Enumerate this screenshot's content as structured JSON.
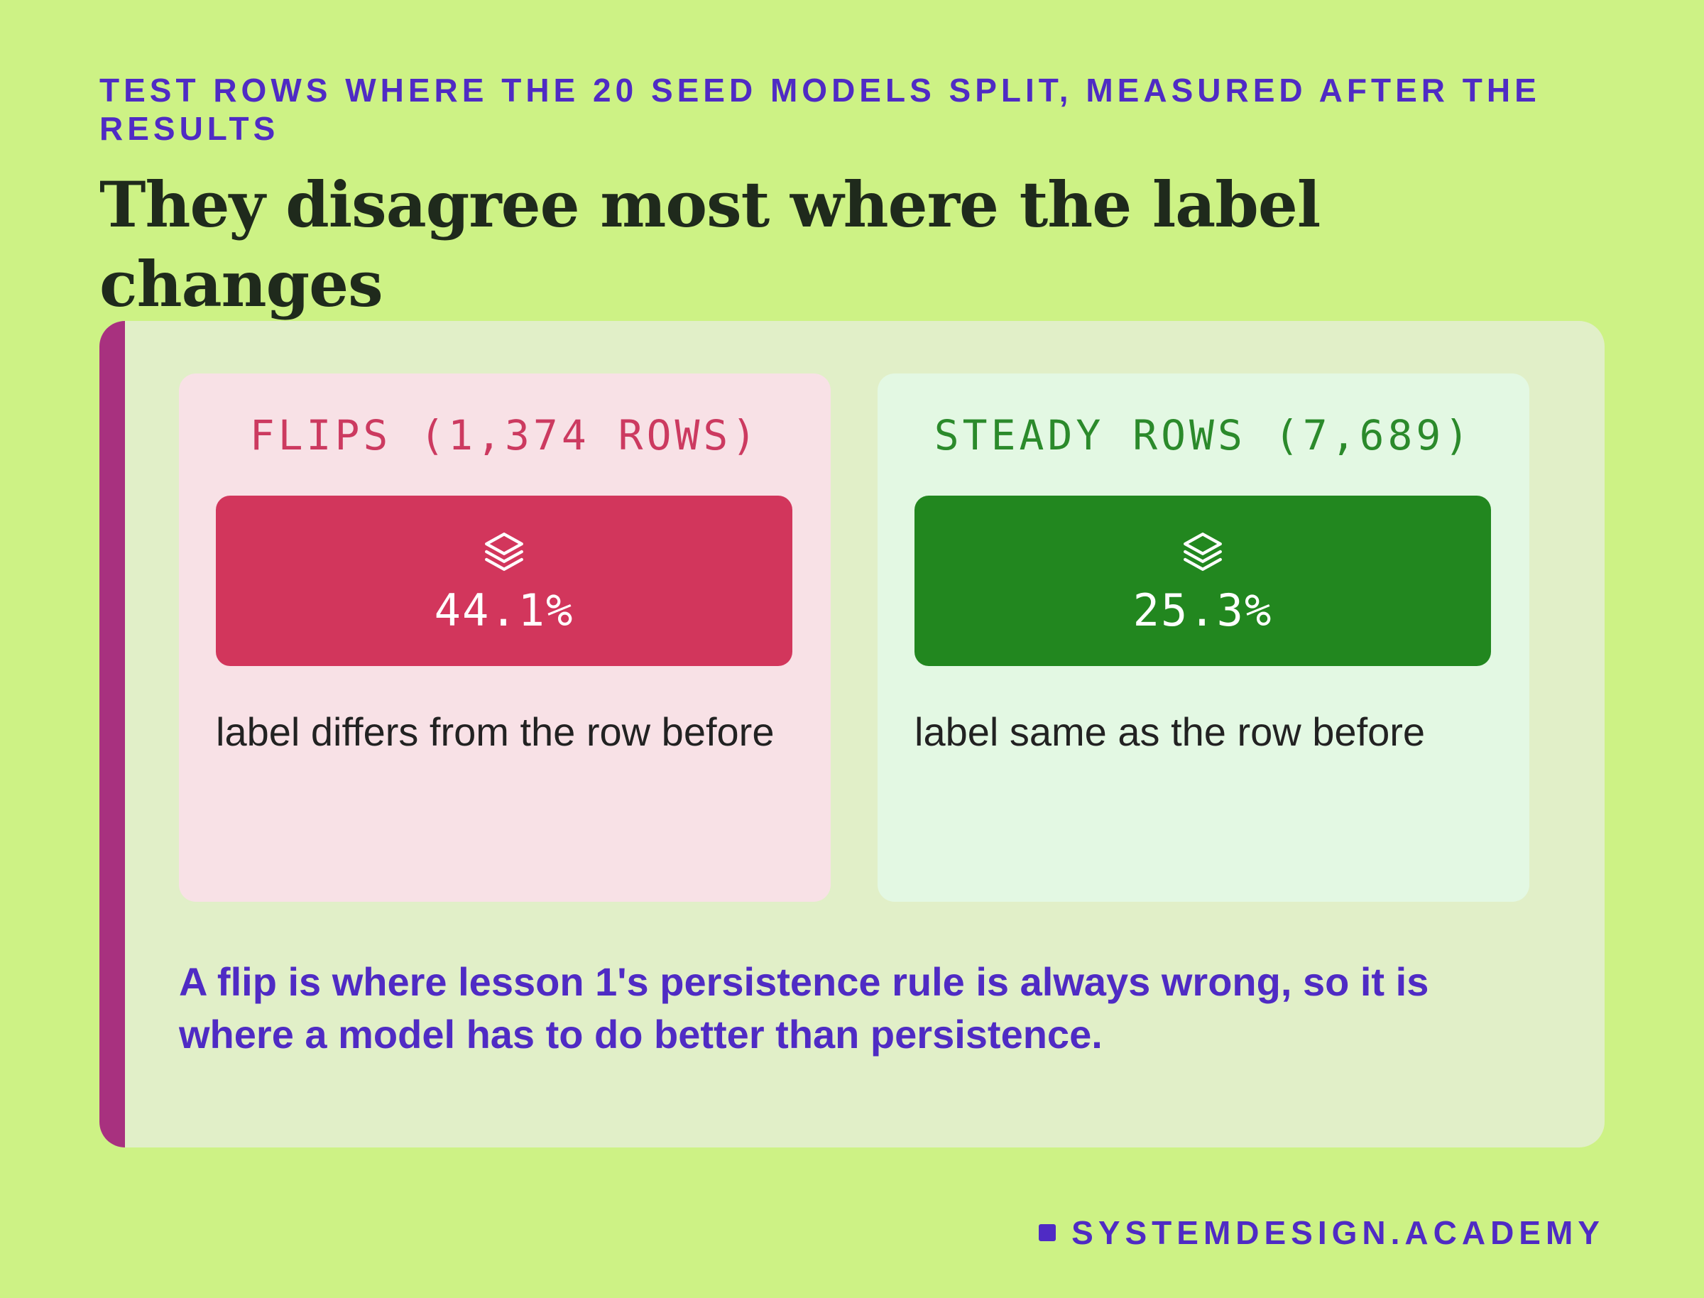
{
  "header": {
    "eyebrow": "TEST ROWS WHERE THE 20 SEED MODELS SPLIT, MEASURED AFTER THE RESULTS",
    "headline": "They disagree most where the label changes"
  },
  "cards": [
    {
      "title": "FLIPS (1,374 ROWS)",
      "icon": "layers-icon",
      "value": "44.1%",
      "description": "label differs from the row before",
      "color": "#d2365c"
    },
    {
      "title": "STEADY ROWS (7,689)",
      "icon": "layers-icon",
      "value": "25.3%",
      "description": "label same as the row before",
      "color": "#22871f"
    }
  ],
  "note": "A flip is where lesson 1's persistence rule is always wrong, so it is where a model has to do better than persistence.",
  "footer": {
    "brand": "SYSTEMDESIGN.ACADEMY"
  },
  "colors": {
    "background": "#cdf285",
    "panel": "#e1efc8",
    "accent_bar": "#a8317f",
    "brand_purple": "#4f2bc4"
  }
}
